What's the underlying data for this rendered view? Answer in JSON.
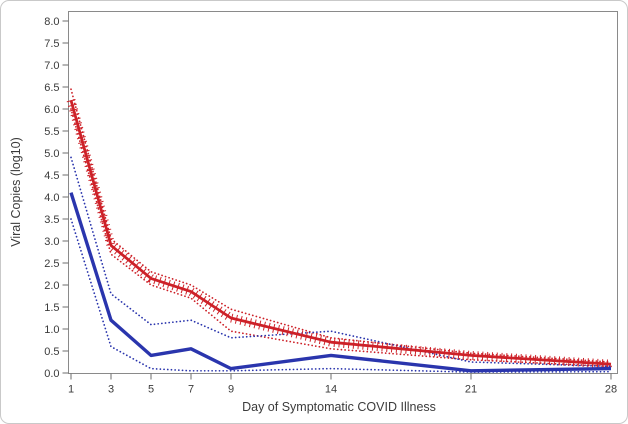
{
  "figure": {
    "background": "#ffffff",
    "border_color": "#c9c9c9",
    "frame_color": "#8a8a8a",
    "tick_color": "#6e6e6e",
    "label_color": "#3b3b3b"
  },
  "chart_data": {
    "type": "line",
    "title": "",
    "xlabel": "Day of Symptomatic COVID Illness",
    "ylabel": "Viral Copies (log10)",
    "xlim": [
      1,
      28
    ],
    "ylim": [
      0,
      8
    ],
    "grid": false,
    "legend_position": "none",
    "x_ticks": [
      "1",
      "3",
      "5",
      "7",
      "9",
      "14",
      "21",
      "28"
    ],
    "y_ticks": [
      "8.0",
      "7.5",
      "7.0",
      "6.5",
      "6.0",
      "5.5",
      "5.0",
      "4.5",
      "4.0",
      "3.5",
      "3.0",
      "2.5",
      "2.0",
      "1.5",
      "1.0",
      "0.5",
      "0.0"
    ],
    "x": [
      1,
      3,
      5,
      7,
      9,
      14,
      21,
      28
    ],
    "series": [
      {
        "name": "red-upper-ci",
        "color": "#cd2128",
        "style": "dotted",
        "values": [
          6.45,
          3.05,
          2.3,
          2.0,
          1.45,
          0.8,
          0.45,
          0.25
        ]
      },
      {
        "name": "red-lower-ci",
        "color": "#cd2128",
        "style": "dotted",
        "values": [
          6.0,
          2.7,
          2.0,
          1.7,
          0.95,
          0.55,
          0.3,
          0.15
        ]
      },
      {
        "name": "blue-upper-ci",
        "color": "#2a35ad",
        "style": "dotted",
        "values": [
          4.9,
          1.8,
          1.1,
          1.2,
          0.8,
          0.95,
          0.25,
          0.15
        ]
      },
      {
        "name": "blue-lower-ci",
        "color": "#2a35ad",
        "style": "dotted",
        "values": [
          3.5,
          0.6,
          0.1,
          0.05,
          0.05,
          0.1,
          0.02,
          0.03
        ]
      },
      {
        "name": "red-mean",
        "color": "#cd2128",
        "style": "solid-hatched",
        "values": [
          6.2,
          2.9,
          2.15,
          1.85,
          1.25,
          0.7,
          0.4,
          0.2
        ]
      },
      {
        "name": "blue-mean",
        "color": "#2a35ad",
        "style": "solid",
        "values": [
          4.1,
          1.2,
          0.4,
          0.55,
          0.1,
          0.4,
          0.05,
          0.1
        ]
      }
    ]
  }
}
